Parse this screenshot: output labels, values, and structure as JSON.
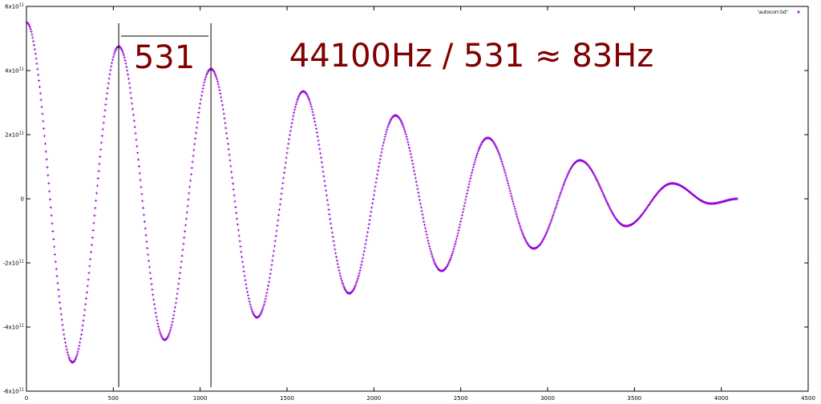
{
  "chart_data": {
    "type": "scatter",
    "title": "",
    "xlabel": "",
    "ylabel": "",
    "xlim": [
      0,
      4500
    ],
    "ylim": [
      -600000000000.0,
      600000000000.0
    ],
    "grid": false,
    "legend_position": "top-right",
    "x_ticks": [
      {
        "value": 0,
        "label": "0"
      },
      {
        "value": 500,
        "label": "500"
      },
      {
        "value": 1000,
        "label": "1000"
      },
      {
        "value": 1500,
        "label": "1500"
      },
      {
        "value": 2000,
        "label": "2000"
      },
      {
        "value": 2500,
        "label": "2500"
      },
      {
        "value": 3000,
        "label": "3000"
      },
      {
        "value": 3500,
        "label": "3500"
      },
      {
        "value": 4000,
        "label": "4000"
      },
      {
        "value": 4500,
        "label": "4500"
      }
    ],
    "y_ticks": [
      {
        "value": 600000000000.0,
        "mant": "6x10",
        "exp": "11"
      },
      {
        "value": 400000000000.0,
        "mant": "4x10",
        "exp": "11"
      },
      {
        "value": 200000000000.0,
        "mant": "2x10",
        "exp": "11"
      },
      {
        "value": 0,
        "mant": "0",
        "exp": ""
      },
      {
        "value": -200000000000.0,
        "mant": "-2x10",
        "exp": "11"
      },
      {
        "value": -400000000000.0,
        "mant": "-4x10",
        "exp": "11"
      },
      {
        "value": -600000000000.0,
        "mant": "-6x10",
        "exp": "11"
      }
    ],
    "series": [
      {
        "name": "'autocorr.txt'",
        "color": "#9400d3",
        "marker": "plus",
        "x": [
          0,
          265,
          531,
          796,
          1062,
          1327,
          1593,
          1858,
          2124,
          2389,
          2655,
          2920,
          3186,
          3451,
          3717,
          3940,
          4095
        ],
        "y": [
          550000000000.0,
          -510000000000.0,
          475000000000.0,
          -440000000000.0,
          405000000000.0,
          -370000000000.0,
          335000000000.0,
          -295000000000.0,
          260000000000.0,
          -225000000000.0,
          190000000000.0,
          -155000000000.0,
          120000000000.0,
          -85000000000.0,
          48000000000.0,
          -15000000000.0,
          0.0
        ]
      }
    ],
    "markers": [
      {
        "name": "first-peak-line",
        "x": 531
      },
      {
        "name": "second-peak-line",
        "x": 1062
      }
    ],
    "annotations": {
      "period_label": "531",
      "frequency_label": "44100Hz / 531 ≈ 83Hz"
    }
  }
}
